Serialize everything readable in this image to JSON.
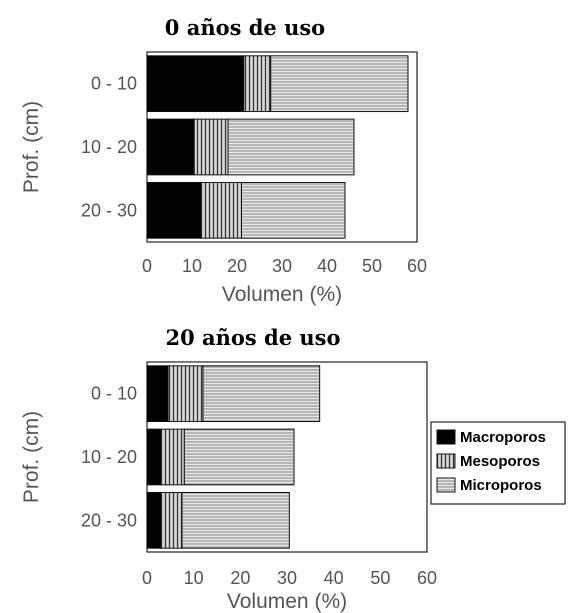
{
  "chart_data": [
    {
      "type": "bar",
      "orientation": "horizontal",
      "stacked": true,
      "title": "0 años de uso",
      "xlabel": "Volumen (%)",
      "ylabel": "Prof. (cm)",
      "xlim": [
        0,
        60
      ],
      "xticks": [
        "0",
        "10",
        "20",
        "30",
        "40",
        "50",
        "60"
      ],
      "categories": [
        "0 - 10",
        "10 - 20",
        "20 - 30"
      ],
      "series": [
        {
          "name": "Macroporos",
          "values": [
            21.5,
            10.5,
            12
          ]
        },
        {
          "name": "Mesoporos",
          "values": [
            6,
            7.5,
            9
          ]
        },
        {
          "name": "Microporos",
          "values": [
            30.5,
            28,
            23
          ]
        }
      ]
    },
    {
      "type": "bar",
      "orientation": "horizontal",
      "stacked": true,
      "title": "20 años de uso",
      "xlabel": "Volumen (%)",
      "ylabel": "Prof. (cm)",
      "xlim": [
        0,
        60
      ],
      "xticks": [
        "0",
        "10",
        "20",
        "30",
        "40",
        "50",
        "60"
      ],
      "categories": [
        "0 - 10",
        "10 - 20",
        "20 - 30"
      ],
      "series": [
        {
          "name": "Macroporos",
          "values": [
            4.5,
            3,
            3
          ]
        },
        {
          "name": "Mesoporos",
          "values": [
            7.5,
            5,
            4.5
          ]
        },
        {
          "name": "Microporos",
          "values": [
            25,
            23.5,
            23
          ]
        }
      ]
    }
  ],
  "legend": {
    "position": "right",
    "items": [
      "Macroporos",
      "Mesoporos",
      "Microporos"
    ]
  }
}
